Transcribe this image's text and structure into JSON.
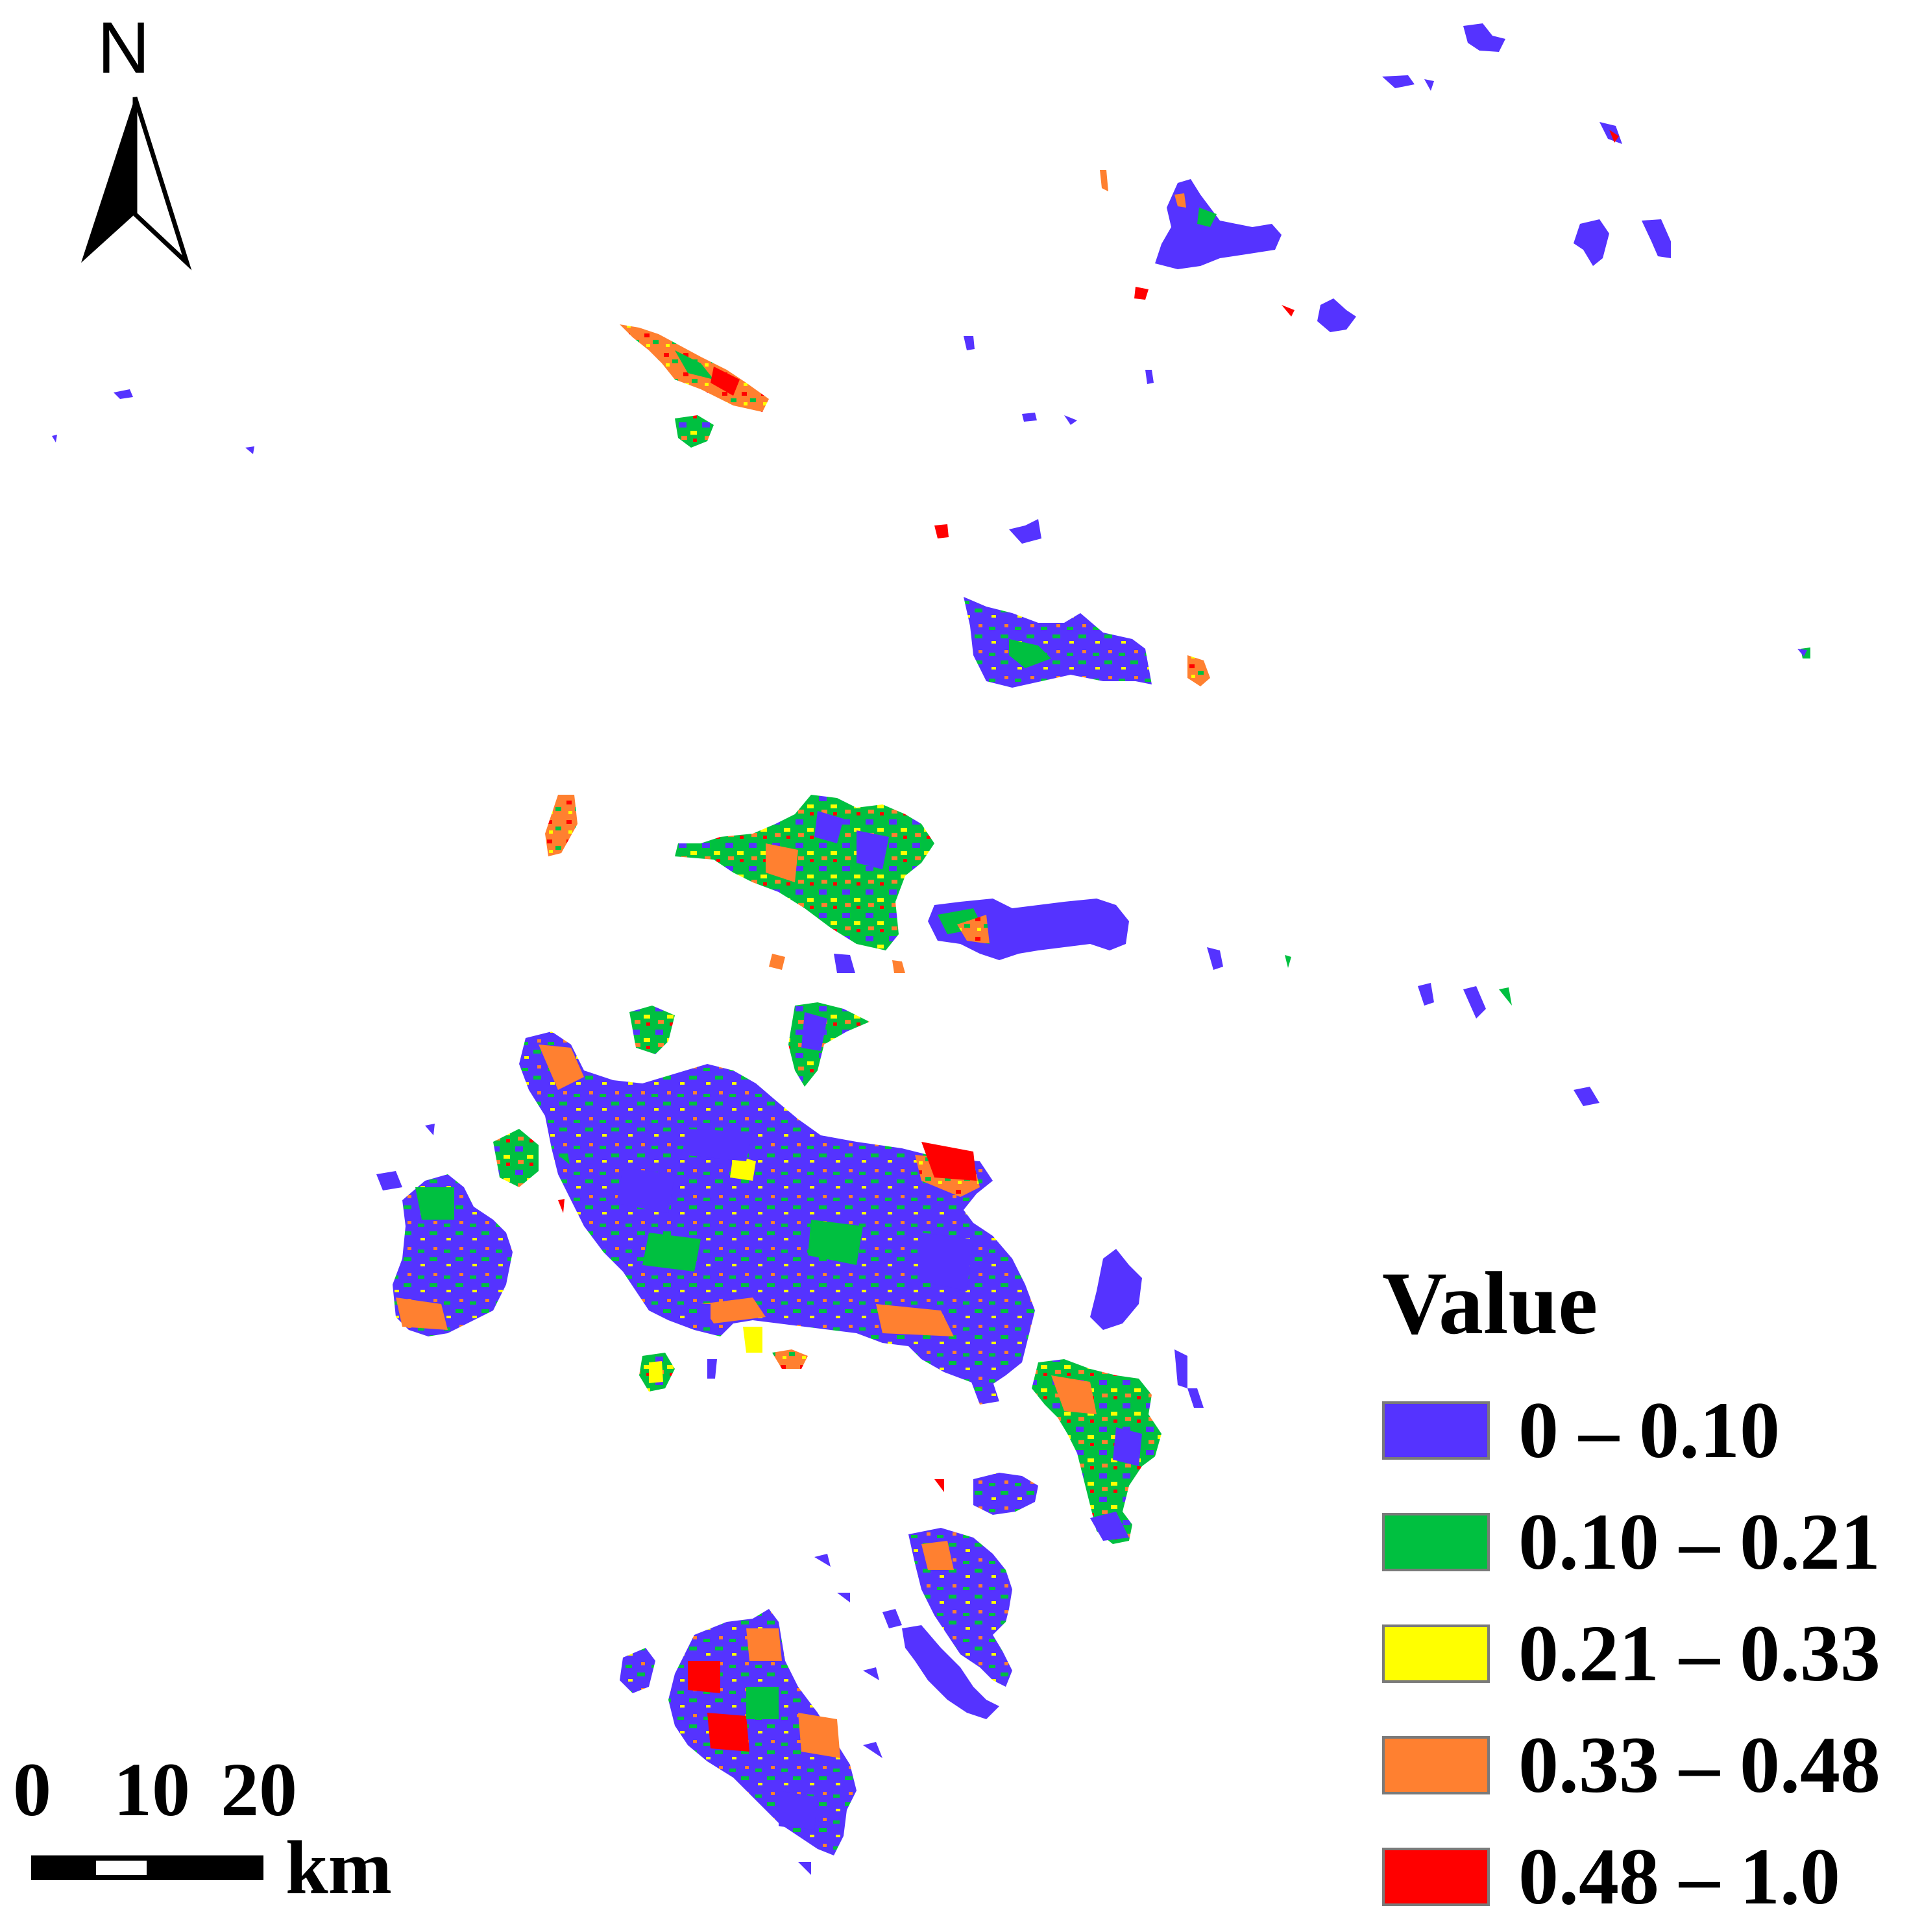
{
  "north_arrow": {
    "letter": "N",
    "icon": "north-arrow-icon"
  },
  "legend": {
    "title": "Value",
    "classes": [
      {
        "label": "0 – 0.10",
        "color": "#5533ff"
      },
      {
        "label": "0.10 – 0.21",
        "color": "#00c040"
      },
      {
        "label": "0.21 – 0.33",
        "color": "#ffff00"
      },
      {
        "label": "0.33 – 0.48",
        "color": "#ff8030"
      },
      {
        "label": "0.48 – 1.0",
        "color": "#ff0000"
      }
    ]
  },
  "scale_bar": {
    "ticks": [
      "0",
      "10",
      "20"
    ],
    "unit": "km"
  }
}
